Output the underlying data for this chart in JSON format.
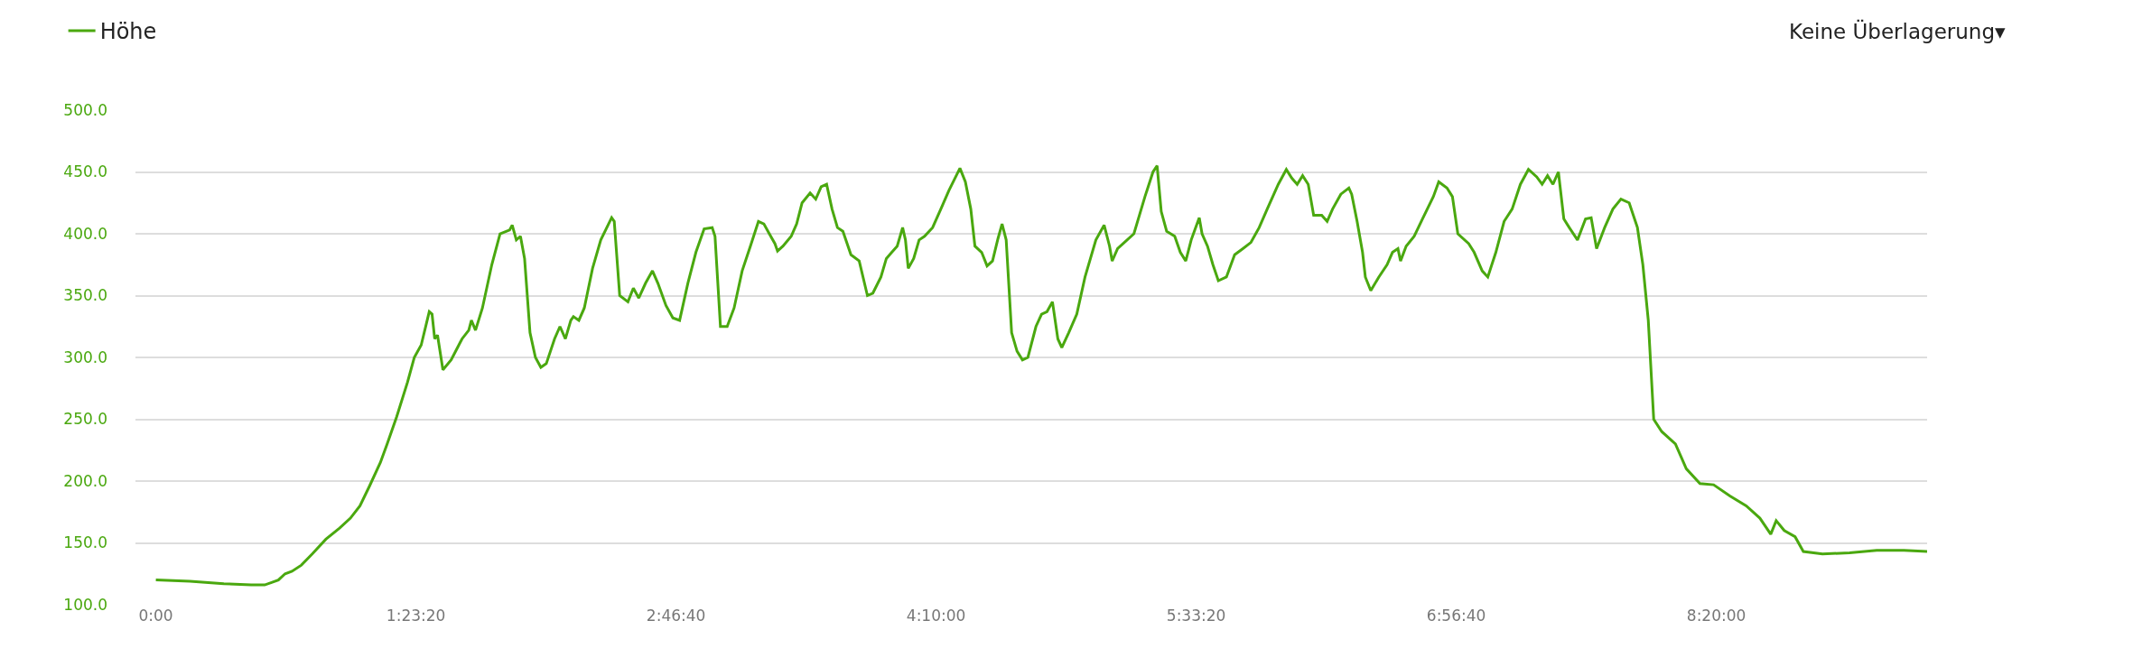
{
  "chart_data": {
    "type": "line",
    "x": [
      0,
      0.182,
      0.363,
      0.509,
      0.581,
      0.618,
      0.654,
      0.69,
      0.727,
      0.777,
      0.835,
      0.908,
      0.981,
      1.039,
      1.09,
      1.141,
      1.199,
      1.235,
      1.286,
      1.344,
      1.38,
      1.417,
      1.46,
      1.475,
      1.489,
      1.504,
      1.533,
      1.577,
      1.635,
      1.671,
      1.685,
      1.707,
      1.744,
      1.794,
      1.838,
      1.889,
      1.903,
      1.925,
      1.947,
      1.969,
      1.998,
      2.027,
      2.056,
      2.085,
      2.129,
      2.158,
      2.187,
      2.216,
      2.23,
      2.259,
      2.288,
      2.332,
      2.376,
      2.434,
      2.448,
      2.477,
      2.521,
      2.55,
      2.579,
      2.615,
      2.652,
      2.681,
      2.724,
      2.761,
      2.797,
      2.841,
      2.884,
      2.928,
      2.971,
      2.986,
      3.015,
      3.051,
      3.088,
      3.131,
      3.175,
      3.218,
      3.247,
      3.276,
      3.306,
      3.32,
      3.349,
      3.393,
      3.422,
      3.451,
      3.494,
      3.524,
      3.553,
      3.582,
      3.611,
      3.64,
      3.669,
      3.712,
      3.756,
      3.8,
      3.829,
      3.872,
      3.901,
      3.93,
      3.959,
      3.988,
      4.003,
      4.018,
      4.047,
      4.076,
      4.105,
      4.148,
      4.192,
      4.235,
      4.294,
      4.323,
      4.352,
      4.374,
      4.41,
      4.439,
      4.468,
      4.497,
      4.519,
      4.541,
      4.57,
      4.599,
      4.628,
      4.657,
      4.7,
      4.73,
      4.759,
      4.788,
      4.817,
      4.838,
      4.875,
      4.918,
      4.962,
      5.02,
      5.064,
      5.093,
      5.107,
      5.136,
      5.18,
      5.223,
      5.282,
      5.325,
      5.347,
      5.369,
      5.398,
      5.441,
      5.471,
      5.5,
      5.529,
      5.572,
      5.587,
      5.616,
      5.645,
      5.674,
      5.717,
      5.761,
      5.805,
      5.848,
      5.892,
      5.935,
      5.994,
      6.037,
      6.066,
      6.095,
      6.124,
      6.154,
      6.183,
      6.226,
      6.255,
      6.284,
      6.328,
      6.371,
      6.386,
      6.415,
      6.444,
      6.459,
      6.488,
      6.531,
      6.575,
      6.604,
      6.633,
      6.647,
      6.677,
      6.72,
      6.764,
      6.822,
      6.851,
      6.895,
      6.924,
      6.953,
      7.011,
      7.04,
      7.083,
      7.113,
      7.156,
      7.2,
      7.243,
      7.287,
      7.33,
      7.374,
      7.403,
      7.432,
      7.461,
      7.49,
      7.519,
      7.548,
      7.592,
      7.635,
      7.665,
      7.694,
      7.737,
      7.781,
      7.824,
      7.868,
      7.912,
      7.941,
      7.97,
      7.999,
      8.042,
      8.115,
      8.173,
      8.246,
      8.319,
      8.406,
      8.493,
      8.566,
      8.624,
      8.653,
      8.696,
      8.754,
      8.798,
      8.9,
      9.045,
      9.19,
      9.335,
      9.459
    ],
    "series": [
      {
        "name": "Höhe",
        "color": "#4aa80f",
        "values": [
          120,
          119,
          117,
          116,
          116,
          118,
          120,
          125,
          127,
          132,
          141,
          153,
          162,
          170,
          180,
          196,
          215,
          230,
          252,
          280,
          300,
          310,
          337,
          335,
          315,
          318,
          290,
          298,
          315,
          322,
          330,
          322,
          340,
          375,
          400,
          403,
          407,
          395,
          398,
          380,
          320,
          300,
          292,
          295,
          315,
          325,
          315,
          330,
          333,
          330,
          340,
          372,
          395,
          413,
          410,
          350,
          345,
          356,
          348,
          360,
          370,
          360,
          342,
          332,
          330,
          360,
          385,
          404,
          405,
          398,
          325,
          325,
          340,
          370,
          390,
          410,
          408,
          400,
          392,
          386,
          390,
          398,
          408,
          425,
          433,
          428,
          438,
          440,
          420,
          405,
          402,
          383,
          378,
          350,
          352,
          365,
          380,
          385,
          390,
          405,
          395,
          372,
          380,
          395,
          398,
          405,
          420,
          435,
          453,
          442,
          420,
          390,
          385,
          374,
          378,
          396,
          408,
          395,
          320,
          305,
          298,
          300,
          325,
          335,
          337,
          345,
          315,
          308,
          320,
          335,
          365,
          395,
          407,
          390,
          378,
          388,
          394,
          400,
          430,
          450,
          455,
          418,
          402,
          398,
          385,
          378,
          395,
          413,
          400,
          390,
          375,
          362,
          365,
          383,
          388,
          393,
          405,
          420,
          440,
          452,
          445,
          440,
          447,
          440,
          415,
          415,
          410,
          420,
          432,
          437,
          432,
          410,
          385,
          365,
          354,
          365,
          375,
          385,
          388,
          378,
          390,
          398,
          412,
          430,
          442,
          437,
          430,
          400,
          392,
          385,
          370,
          365,
          385,
          410,
          420,
          440,
          452,
          446,
          440,
          447,
          440,
          450,
          412,
          405,
          395,
          412,
          413,
          388,
          405,
          420,
          428,
          425,
          405,
          375,
          330,
          250,
          240,
          230,
          210,
          198,
          197,
          188,
          180,
          170,
          157,
          168,
          160,
          155,
          143,
          141,
          142,
          144,
          144,
          143
        ]
      }
    ],
    "xlim": [
      -0.109,
      9.459
    ],
    "xticks": [
      {
        "value": 0,
        "label": "0:00"
      },
      {
        "value": 1.388889,
        "label": "1:23:20"
      },
      {
        "value": 2.777778,
        "label": "2:46:40"
      },
      {
        "value": 4.166667,
        "label": "4:10:00"
      },
      {
        "value": 5.555556,
        "label": "5:33:20"
      },
      {
        "value": 6.944444,
        "label": "6:56:40"
      },
      {
        "value": 8.333333,
        "label": "8:20:00"
      }
    ],
    "ylim": [
      100,
      500
    ],
    "yticks": [
      {
        "value": 100,
        "label": "100.0"
      },
      {
        "value": 150,
        "label": "150.0"
      },
      {
        "value": 200,
        "label": "200.0"
      },
      {
        "value": 250,
        "label": "250.0"
      },
      {
        "value": 300,
        "label": "300.0"
      },
      {
        "value": 350,
        "label": "350.0"
      },
      {
        "value": 400,
        "label": "400.0"
      },
      {
        "value": 450,
        "label": "450.0"
      },
      {
        "value": 500,
        "label": "500.0"
      }
    ],
    "annotations": [
      "Keine Überlagerung▾"
    ],
    "grid": "y",
    "legend": "top left",
    "marker": "none",
    "line_style": "solid"
  }
}
